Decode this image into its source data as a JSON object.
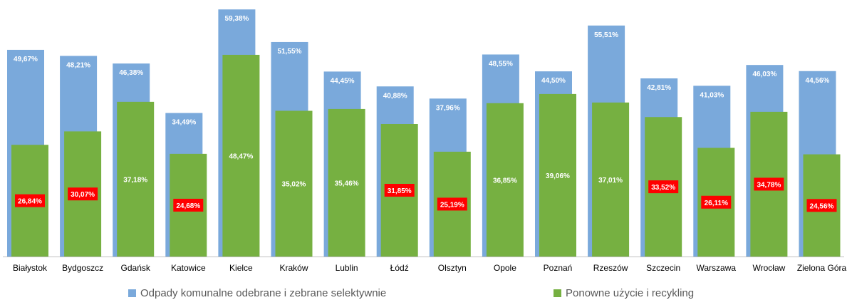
{
  "chart_data": {
    "type": "bar",
    "categories": [
      "Białystok",
      "Bydgoszcz",
      "Gdańsk",
      "Katowice",
      "Kielce",
      "Kraków",
      "Lublin",
      "Łódź",
      "Olsztyn",
      "Opole",
      "Poznań",
      "Rzeszów",
      "Szczecin",
      "Warszawa",
      "Wrocław",
      "Zielona Góra"
    ],
    "series": [
      {
        "name": "Odpady komunalne odebrane i zebrane selektywnie",
        "color": "#7aa9db",
        "values": [
          49.67,
          48.21,
          46.38,
          34.49,
          59.38,
          51.55,
          44.45,
          40.88,
          37.96,
          48.55,
          44.5,
          55.51,
          42.81,
          41.03,
          46.03,
          44.56
        ],
        "labels": [
          "49,67%",
          "48,21%",
          "46,38%",
          "34,49%",
          "59,38%",
          "51,55%",
          "44,45%",
          "40,88%",
          "37,96%",
          "48,55%",
          "44,50%",
          "55,51%",
          "42,81%",
          "41,03%",
          "46,03%",
          "44,56%"
        ]
      },
      {
        "name": "Ponowne użycie i recykling",
        "color": "#76b041",
        "values": [
          26.84,
          30.07,
          37.18,
          24.68,
          48.47,
          35.02,
          35.46,
          31.85,
          25.19,
          36.85,
          39.06,
          37.01,
          33.52,
          26.11,
          34.78,
          24.56
        ],
        "labels": [
          "26,84%",
          "30,07%",
          "37,18%",
          "24,68%",
          "48,47%",
          "35,02%",
          "35,46%",
          "31,85%",
          "25,19%",
          "36,85%",
          "39,06%",
          "37,01%",
          "33,52%",
          "26,11%",
          "34,78%",
          "24,56%"
        ],
        "highlighted": [
          true,
          true,
          false,
          true,
          false,
          false,
          false,
          true,
          true,
          false,
          false,
          false,
          true,
          true,
          true,
          true
        ]
      }
    ],
    "highlight_color": "#ff0000",
    "ylim": [
      0,
      60
    ],
    "grid": false,
    "legend_position": "bottom"
  },
  "legend": {
    "series1_label": "Odpady komunalne odebrane i zebrane selektywnie",
    "series2_label": "Ponowne użycie i recykling"
  }
}
